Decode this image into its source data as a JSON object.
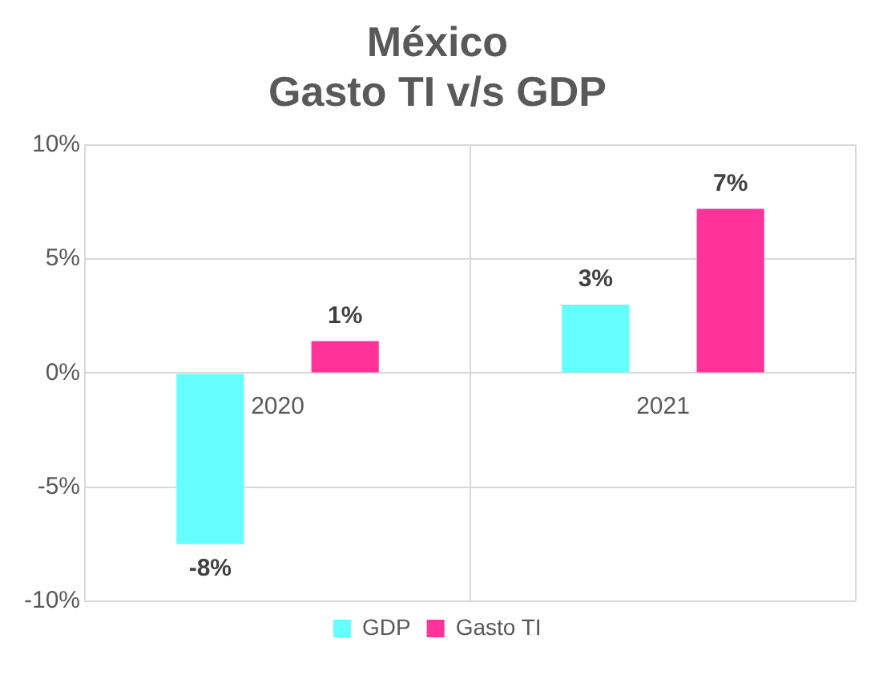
{
  "chart_data": {
    "type": "bar",
    "title": "México\nGasto TI v/s GDP",
    "categories": [
      "2020",
      "2021"
    ],
    "series": [
      {
        "name": "GDP",
        "color": "#66ffff",
        "values": [
          -7.5,
          3.0
        ],
        "value_labels": [
          "-8%",
          "3%"
        ]
      },
      {
        "name": "Gasto TI",
        "color": "#ff3399",
        "values": [
          1.4,
          7.2
        ],
        "value_labels": [
          "1%",
          "7%"
        ]
      }
    ],
    "ylim": [
      -10,
      10
    ],
    "yticks": [
      {
        "value": -10,
        "label": "-10%"
      },
      {
        "value": -5,
        "label": "-5%"
      },
      {
        "value": 0,
        "label": "0%"
      },
      {
        "value": 5,
        "label": "5%"
      },
      {
        "value": 10,
        "label": "10%"
      }
    ],
    "grid": true,
    "legend": "bottom"
  }
}
